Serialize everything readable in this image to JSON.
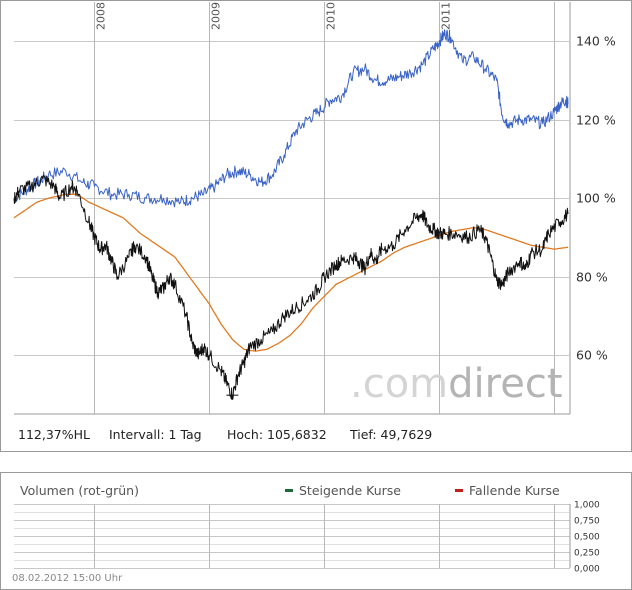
{
  "chart_data": {
    "type": "line",
    "x_axis_years": [
      "2008",
      "2009",
      "2010",
      "2011"
    ],
    "y_ticks": [
      "140 %",
      "120 %",
      "100 %",
      "80 %",
      "60 %"
    ],
    "y_tick_values": [
      140,
      120,
      100,
      80,
      60
    ],
    "ylim": [
      45,
      150
    ],
    "xlim": [
      2007.3,
      2012.12
    ],
    "grid": true,
    "series": [
      {
        "color": "#3a63c6",
        "points": [
          [
            2007.3,
            100
          ],
          [
            2007.4,
            102
          ],
          [
            2007.5,
            104
          ],
          [
            2007.6,
            106
          ],
          [
            2007.75,
            107
          ],
          [
            2007.9,
            104
          ],
          [
            2008.0,
            103
          ],
          [
            2008.15,
            101
          ],
          [
            2008.3,
            101
          ],
          [
            2008.45,
            100
          ],
          [
            2008.6,
            100
          ],
          [
            2008.75,
            99
          ],
          [
            2008.85,
            100
          ],
          [
            2008.95,
            101
          ],
          [
            2009.05,
            103
          ],
          [
            2009.15,
            106
          ],
          [
            2009.25,
            107
          ],
          [
            2009.35,
            106
          ],
          [
            2009.45,
            104
          ],
          [
            2009.55,
            106
          ],
          [
            2009.65,
            111
          ],
          [
            2009.75,
            117
          ],
          [
            2009.85,
            120
          ],
          [
            2009.95,
            122
          ],
          [
            2010.05,
            125
          ],
          [
            2010.15,
            126
          ],
          [
            2010.25,
            132
          ],
          [
            2010.35,
            133
          ],
          [
            2010.45,
            130
          ],
          [
            2010.55,
            130
          ],
          [
            2010.65,
            131
          ],
          [
            2010.75,
            132
          ],
          [
            2010.85,
            134
          ],
          [
            2010.95,
            138
          ],
          [
            2011.0,
            140
          ],
          [
            2011.05,
            142
          ],
          [
            2011.1,
            141
          ],
          [
            2011.2,
            135
          ],
          [
            2011.3,
            136
          ],
          [
            2011.4,
            133
          ],
          [
            2011.5,
            130
          ],
          [
            2011.55,
            121
          ],
          [
            2011.6,
            119
          ],
          [
            2011.7,
            120
          ],
          [
            2011.8,
            120
          ],
          [
            2011.9,
            119
          ],
          [
            2012.0,
            122
          ],
          [
            2012.05,
            124
          ],
          [
            2012.1,
            125
          ],
          [
            2012.12,
            124
          ]
        ]
      },
      {
        "color": "#111111",
        "points": [
          [
            2007.3,
            100
          ],
          [
            2007.35,
            102
          ],
          [
            2007.45,
            103
          ],
          [
            2007.55,
            105
          ],
          [
            2007.65,
            103
          ],
          [
            2007.7,
            100
          ],
          [
            2007.8,
            103
          ],
          [
            2007.85,
            102
          ],
          [
            2007.95,
            94
          ],
          [
            2008.0,
            90
          ],
          [
            2008.05,
            87
          ],
          [
            2008.1,
            88
          ],
          [
            2008.15,
            84
          ],
          [
            2008.2,
            80
          ],
          [
            2008.3,
            85
          ],
          [
            2008.35,
            88
          ],
          [
            2008.45,
            85
          ],
          [
            2008.5,
            80
          ],
          [
            2008.55,
            76
          ],
          [
            2008.6,
            77
          ],
          [
            2008.65,
            80
          ],
          [
            2008.7,
            78
          ],
          [
            2008.8,
            70
          ],
          [
            2008.85,
            63
          ],
          [
            2008.9,
            60
          ],
          [
            2008.95,
            62
          ],
          [
            2009.0,
            60
          ],
          [
            2009.1,
            56
          ],
          [
            2009.15,
            53
          ],
          [
            2009.2,
            49.8
          ],
          [
            2009.25,
            55
          ],
          [
            2009.3,
            58
          ],
          [
            2009.35,
            62
          ],
          [
            2009.45,
            64
          ],
          [
            2009.55,
            66
          ],
          [
            2009.65,
            70
          ],
          [
            2009.75,
            72
          ],
          [
            2009.85,
            74
          ],
          [
            2009.95,
            77
          ],
          [
            2010.0,
            80
          ],
          [
            2010.1,
            83
          ],
          [
            2010.15,
            84
          ],
          [
            2010.25,
            85
          ],
          [
            2010.3,
            84
          ],
          [
            2010.35,
            82
          ],
          [
            2010.4,
            86
          ],
          [
            2010.45,
            84
          ],
          [
            2010.5,
            87
          ],
          [
            2010.6,
            88
          ],
          [
            2010.7,
            92
          ],
          [
            2010.8,
            95
          ],
          [
            2010.85,
            96
          ],
          [
            2010.9,
            93
          ],
          [
            2010.95,
            92
          ],
          [
            2011.0,
            91
          ],
          [
            2011.05,
            91
          ],
          [
            2011.15,
            91
          ],
          [
            2011.25,
            90
          ],
          [
            2011.35,
            92
          ],
          [
            2011.4,
            90
          ],
          [
            2011.45,
            85
          ],
          [
            2011.5,
            79
          ],
          [
            2011.55,
            78
          ],
          [
            2011.6,
            81
          ],
          [
            2011.7,
            84
          ],
          [
            2011.75,
            82
          ],
          [
            2011.8,
            86
          ],
          [
            2011.9,
            87
          ],
          [
            2011.95,
            91
          ],
          [
            2012.05,
            94
          ],
          [
            2012.12,
            96
          ]
        ]
      },
      {
        "color": "#e07a20",
        "points": [
          [
            2007.3,
            95
          ],
          [
            2007.4,
            97
          ],
          [
            2007.5,
            99
          ],
          [
            2007.6,
            100
          ],
          [
            2007.75,
            101
          ],
          [
            2007.85,
            101
          ],
          [
            2007.95,
            99
          ],
          [
            2008.1,
            97
          ],
          [
            2008.25,
            95
          ],
          [
            2008.4,
            91
          ],
          [
            2008.55,
            88
          ],
          [
            2008.7,
            85
          ],
          [
            2008.8,
            81
          ],
          [
            2008.9,
            77
          ],
          [
            2009.0,
            73
          ],
          [
            2009.1,
            68
          ],
          [
            2009.2,
            64
          ],
          [
            2009.3,
            61.5
          ],
          [
            2009.4,
            61
          ],
          [
            2009.5,
            61.5
          ],
          [
            2009.6,
            63
          ],
          [
            2009.7,
            65
          ],
          [
            2009.8,
            68
          ],
          [
            2009.9,
            72
          ],
          [
            2010.0,
            75
          ],
          [
            2010.1,
            78
          ],
          [
            2010.2,
            79.5
          ],
          [
            2010.3,
            81
          ],
          [
            2010.4,
            82.5
          ],
          [
            2010.5,
            84
          ],
          [
            2010.6,
            86
          ],
          [
            2010.7,
            87.5
          ],
          [
            2010.8,
            88.5
          ],
          [
            2010.9,
            89.5
          ],
          [
            2011.0,
            90.5
          ],
          [
            2011.1,
            91.5
          ],
          [
            2011.2,
            92
          ],
          [
            2011.3,
            92.5
          ],
          [
            2011.4,
            92
          ],
          [
            2011.5,
            91
          ],
          [
            2011.6,
            90
          ],
          [
            2011.7,
            89
          ],
          [
            2011.8,
            88
          ],
          [
            2011.9,
            87.5
          ],
          [
            2012.0,
            87
          ],
          [
            2012.12,
            87.5
          ]
        ]
      }
    ]
  },
  "stats": {
    "current": "112,37%HL",
    "interval": "Intervall: 1 Tag",
    "high": "Hoch: 105,6832",
    "low": "Tief: 49,7629"
  },
  "watermark": {
    "light": ".com",
    "dark": "direct"
  },
  "volume": {
    "title": "Volumen (rot-grün)",
    "legend_up": "Steigende Kurse",
    "legend_down": "Fallende Kurse",
    "legend_up_color": "#1a6a3a",
    "legend_down_color": "#c0201a",
    "y_ticks": [
      "1,000",
      "0,750",
      "0,500",
      "0,250",
      "0,000"
    ],
    "timestamp": "08.02.2012 15:00 Uhr"
  }
}
